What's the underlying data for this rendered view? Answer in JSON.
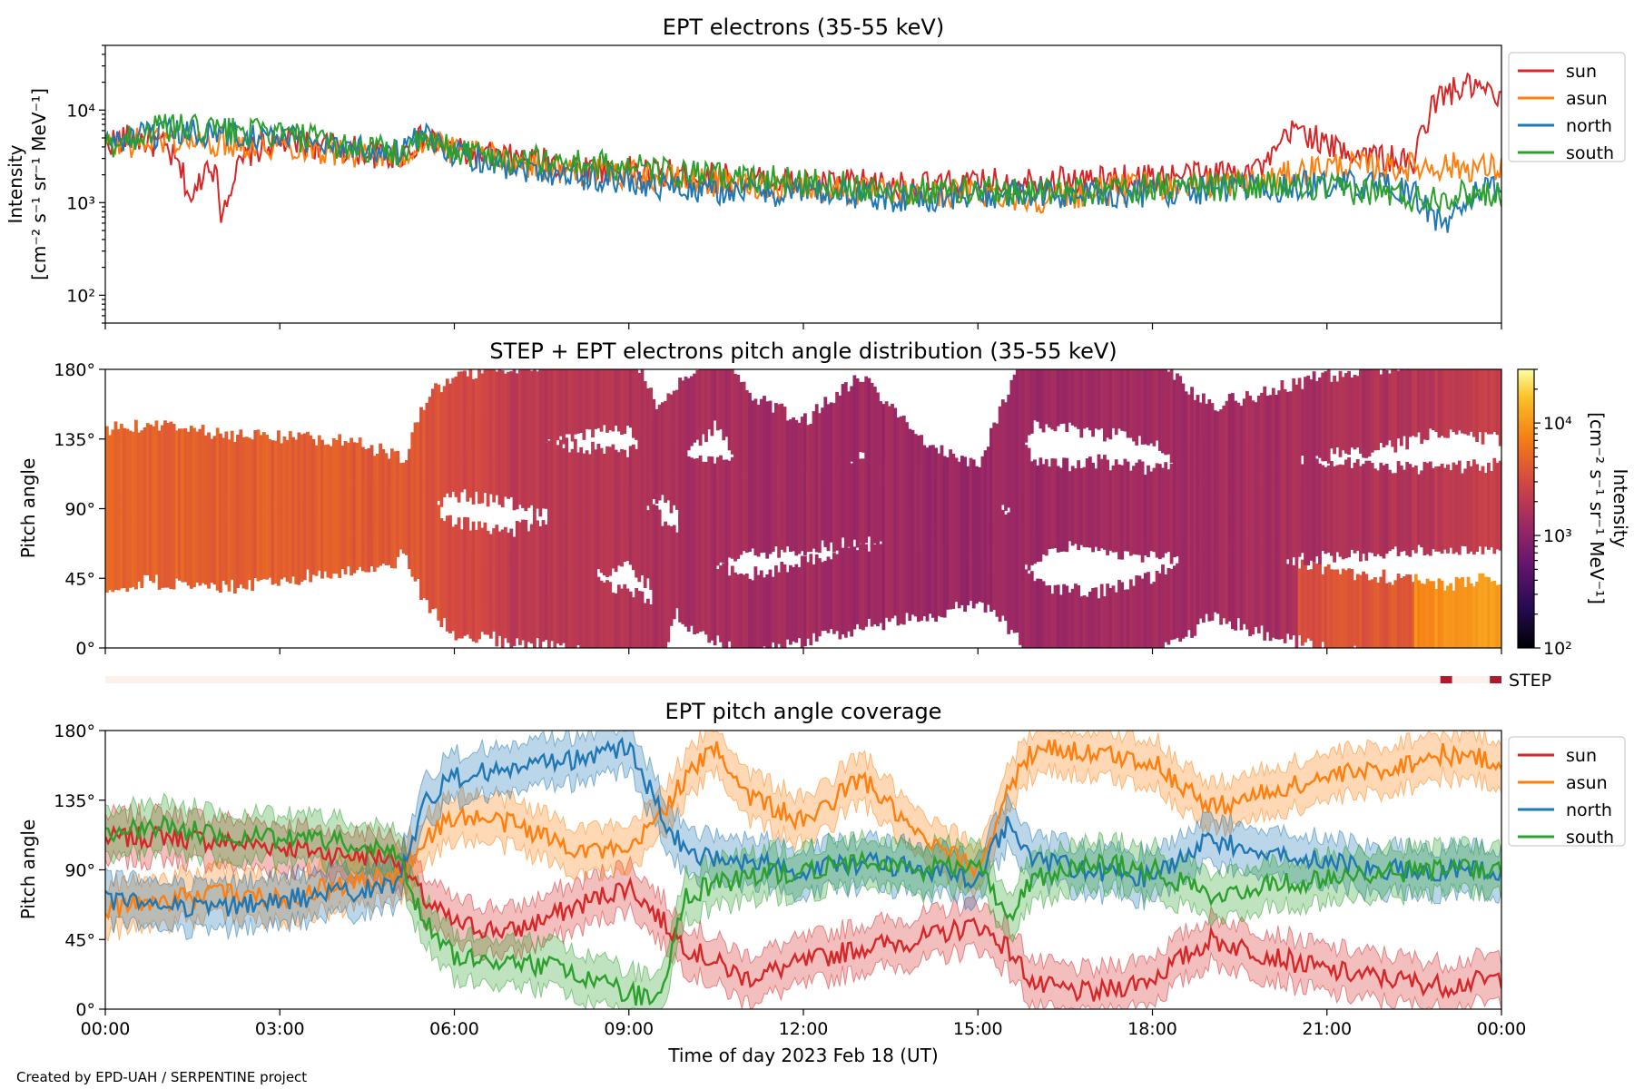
{
  "page": {
    "credit": "Created by EPD-UAH / SERPENTINE project",
    "xlabel": "Time of day 2023 Feb 18 (UT)"
  },
  "series_colors": {
    "sun": "#d62728",
    "asun": "#ff7f0e",
    "north": "#1f77b4",
    "south": "#2ca02c"
  },
  "chart_data": [
    {
      "id": "panel1",
      "type": "line",
      "title": "EPT electrons (35-55 keV)",
      "ylabel_line1": "Intensity",
      "ylabel_line2": "[cm⁻² s⁻¹ sr⁻¹ MeV⁻¹]",
      "yscale": "log",
      "ylim": [
        50,
        50000
      ],
      "yticks": [
        100,
        1000,
        10000
      ],
      "ytick_labels": [
        "10²",
        "10³",
        "10⁴"
      ],
      "xlim_hours": [
        0,
        24
      ],
      "legend": "outside-right",
      "series": [
        {
          "name": "sun",
          "hours": [
            0,
            0.5,
            1,
            1.5,
            1.8,
            2,
            2.5,
            3,
            4,
            5,
            5.5,
            6,
            7,
            8,
            9,
            10,
            11,
            12,
            13,
            14,
            15,
            16,
            17,
            18,
            19,
            20,
            20.5,
            21,
            21.5,
            22,
            22.5,
            23,
            23.5,
            24
          ],
          "values": [
            4500,
            5000,
            4000,
            900,
            3000,
            700,
            3500,
            4500,
            4000,
            3000,
            5000,
            3500,
            3000,
            2500,
            2200,
            2000,
            1800,
            1600,
            1600,
            1500,
            1600,
            1800,
            1700,
            1900,
            2000,
            2500,
            6500,
            4000,
            3500,
            3000,
            2500,
            15000,
            18000,
            12000
          ]
        },
        {
          "name": "asun",
          "hours": [
            0,
            1,
            2,
            3,
            4,
            5,
            5.5,
            6,
            7,
            8,
            9,
            10,
            11,
            12,
            13,
            14,
            15,
            16,
            17,
            18,
            19,
            20,
            21,
            22,
            23,
            24
          ],
          "values": [
            4000,
            4800,
            4500,
            4200,
            3500,
            3000,
            4500,
            3500,
            2800,
            2200,
            2000,
            1700,
            1600,
            1500,
            1300,
            1200,
            1300,
            1100,
            1300,
            1500,
            1600,
            1700,
            2500,
            2400,
            2500,
            2300
          ]
        },
        {
          "name": "north",
          "hours": [
            0,
            1,
            2,
            3,
            4,
            5,
            5.5,
            6,
            7,
            8,
            9,
            10,
            11,
            12,
            13,
            14,
            15,
            16,
            17,
            18,
            19,
            20,
            21,
            22,
            22.5,
            23,
            23.5,
            24
          ],
          "values": [
            4500,
            5500,
            5800,
            5000,
            4200,
            3500,
            5000,
            3500,
            2500,
            2000,
            1700,
            1400,
            1300,
            1300,
            1200,
            1100,
            1200,
            1200,
            1200,
            1300,
            1400,
            1400,
            1600,
            1500,
            1200,
            500,
            1200,
            1400
          ]
        },
        {
          "name": "south",
          "hours": [
            0,
            1,
            2,
            3,
            4,
            5,
            5.5,
            6,
            7,
            8,
            9,
            10,
            11,
            12,
            13,
            14,
            15,
            16,
            17,
            18,
            19,
            20,
            21,
            22,
            22.5,
            23,
            24
          ],
          "values": [
            4000,
            6500,
            6000,
            5500,
            4200,
            3500,
            4500,
            3700,
            3000,
            2700,
            2400,
            2000,
            1800,
            1700,
            1500,
            1300,
            1400,
            1300,
            1300,
            1500,
            1500,
            1500,
            1400,
            1300,
            1100,
            1200,
            1300
          ]
        }
      ]
    },
    {
      "id": "panel2",
      "type": "heatmap",
      "title": "STEP + EPT electrons pitch angle distribution (35-55 keV)",
      "ylabel": "Pitch angle",
      "ylim": [
        0,
        180
      ],
      "yticks": [
        0,
        45,
        90,
        135,
        180
      ],
      "ytick_labels": [
        "0°",
        "45°",
        "90°",
        "135°",
        "180°"
      ],
      "xlim_hours": [
        0,
        24
      ],
      "colorbar": {
        "label_line1": "Intensity",
        "label_line2": "[cm⁻² s⁻¹ sr⁻¹ MeV⁻¹]",
        "scale": "log",
        "range": [
          100,
          30000
        ],
        "ticks": [
          100,
          1000,
          10000
        ],
        "tick_labels": [
          "10²",
          "10³",
          "10⁴"
        ],
        "colormap": "inferno"
      },
      "intensity_profile": {
        "hours": [
          0,
          2,
          4,
          5.5,
          7,
          9,
          11,
          13,
          15,
          17,
          19,
          21,
          22.5,
          23.5,
          24
        ],
        "values": [
          5000,
          4500,
          4200,
          3800,
          2200,
          1700,
          1400,
          1300,
          1200,
          1300,
          1400,
          1500,
          1800,
          2500,
          2500
        ]
      },
      "step_indicator": {
        "label": "STEP",
        "segments_hours": [
          [
            22.95,
            23.15
          ],
          [
            23.8,
            24.0
          ]
        ]
      }
    },
    {
      "id": "panel3",
      "type": "line",
      "title": "EPT pitch angle coverage",
      "ylabel": "Pitch angle",
      "ylim": [
        0,
        180
      ],
      "yticks": [
        0,
        45,
        90,
        135,
        180
      ],
      "ytick_labels": [
        "0°",
        "45°",
        "90°",
        "135°",
        "180°"
      ],
      "xlim_hours": [
        0,
        24
      ],
      "xticks_hours": [
        0,
        3,
        6,
        9,
        12,
        15,
        18,
        21,
        24
      ],
      "xtick_labels": [
        "00:00",
        "03:00",
        "06:00",
        "09:00",
        "12:00",
        "15:00",
        "18:00",
        "21:00",
        "00:00"
      ],
      "legend": "outside-right",
      "band_halfwidth_deg": 15,
      "series": [
        {
          "name": "sun",
          "hours": [
            0,
            1,
            2,
            3,
            4,
            5,
            5.5,
            6,
            7,
            8,
            9,
            10,
            11,
            12,
            13,
            14,
            15,
            15.5,
            16,
            17,
            18,
            19,
            20,
            21,
            22,
            23,
            24
          ],
          "values": [
            110,
            112,
            108,
            105,
            100,
            98,
            70,
            55,
            50,
            65,
            80,
            40,
            20,
            30,
            40,
            45,
            55,
            40,
            15,
            10,
            20,
            45,
            35,
            25,
            20,
            15,
            20
          ]
        },
        {
          "name": "asun",
          "hours": [
            0,
            1,
            2,
            3,
            4,
            5,
            5.5,
            6,
            7,
            8,
            9,
            10,
            10.5,
            11,
            12,
            13,
            14,
            15,
            15.5,
            16,
            17,
            18,
            19,
            20,
            21,
            22,
            23,
            24
          ],
          "values": [
            65,
            70,
            75,
            72,
            80,
            85,
            110,
            125,
            120,
            105,
            100,
            150,
            170,
            140,
            120,
            150,
            110,
            90,
            140,
            170,
            165,
            160,
            130,
            140,
            150,
            155,
            165,
            160
          ]
        },
        {
          "name": "north",
          "hours": [
            0,
            1,
            2,
            3,
            4,
            5,
            5.5,
            6,
            7,
            8,
            9,
            9.5,
            10,
            11,
            12,
            13,
            14,
            15,
            15.5,
            16,
            17,
            18,
            19,
            20,
            21,
            22,
            23,
            24
          ],
          "values": [
            70,
            68,
            65,
            70,
            75,
            80,
            135,
            150,
            155,
            160,
            170,
            130,
            100,
            95,
            90,
            95,
            90,
            85,
            120,
            95,
            90,
            85,
            110,
            100,
            95,
            90,
            90,
            88
          ]
        },
        {
          "name": "south",
          "hours": [
            0,
            1,
            2,
            3,
            4,
            5,
            5.5,
            6,
            7,
            8,
            9,
            9.5,
            10,
            11,
            12,
            13,
            14,
            15,
            15.5,
            16,
            17,
            18,
            19,
            20,
            21,
            22,
            23,
            24
          ],
          "values": [
            115,
            118,
            112,
            110,
            108,
            100,
            55,
            35,
            30,
            25,
            10,
            5,
            75,
            85,
            90,
            95,
            90,
            95,
            60,
            85,
            95,
            90,
            75,
            80,
            85,
            88,
            90,
            92
          ]
        }
      ]
    }
  ]
}
